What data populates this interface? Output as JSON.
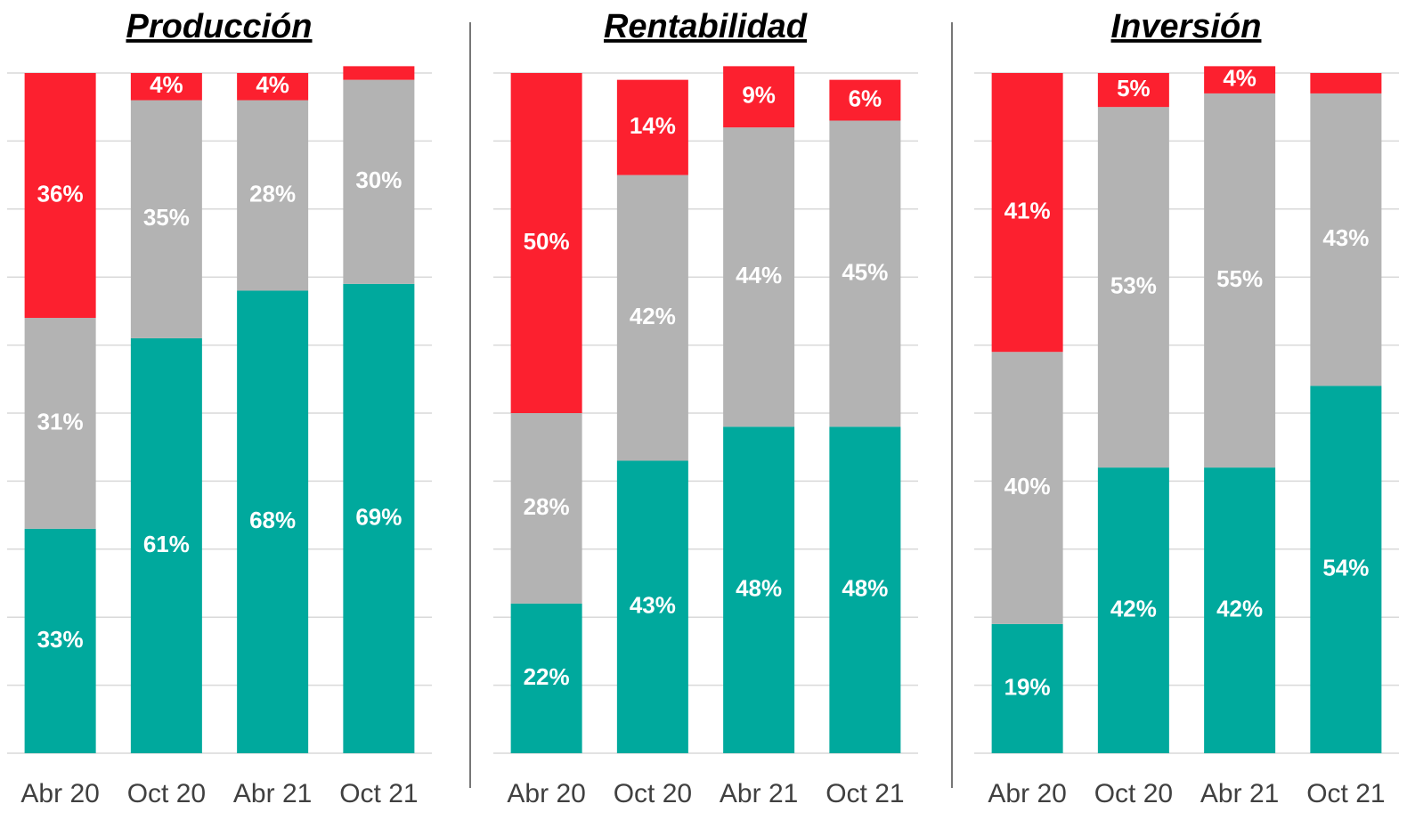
{
  "chart_data": [
    {
      "type": "bar",
      "stacked": true,
      "title": "Producción",
      "categories": [
        "Abr 20",
        "Oct 20",
        "Abr 21",
        "Oct 21"
      ],
      "ylim": [
        0,
        100
      ],
      "yticks": [
        0,
        10,
        20,
        30,
        40,
        50,
        60,
        70,
        80,
        90,
        100
      ],
      "grid": true,
      "series": [
        {
          "color": "#00a99d",
          "values": [
            33,
            61,
            68,
            69
          ],
          "value_labels": [
            "33%",
            "61%",
            "68%",
            "69%"
          ]
        },
        {
          "color": "#b3b3b3",
          "values": [
            31,
            35,
            28,
            30
          ],
          "value_labels": [
            "31%",
            "35%",
            "28%",
            "30%"
          ]
        },
        {
          "color": "#fc202f",
          "values": [
            36,
            4,
            4,
            2
          ],
          "value_labels": [
            "36%",
            "4%",
            "4%",
            null
          ]
        }
      ]
    },
    {
      "type": "bar",
      "stacked": true,
      "title": "Rentabilidad",
      "categories": [
        "Abr 20",
        "Oct 20",
        "Abr 21",
        "Oct 21"
      ],
      "ylim": [
        0,
        100
      ],
      "yticks": [
        0,
        10,
        20,
        30,
        40,
        50,
        60,
        70,
        80,
        90,
        100
      ],
      "grid": true,
      "series": [
        {
          "color": "#00a99d",
          "values": [
            22,
            43,
            48,
            48
          ],
          "value_labels": [
            "22%",
            "43%",
            "48%",
            "48%"
          ]
        },
        {
          "color": "#b3b3b3",
          "values": [
            28,
            42,
            44,
            45
          ],
          "value_labels": [
            "28%",
            "42%",
            "44%",
            "45%"
          ]
        },
        {
          "color": "#fc202f",
          "values": [
            50,
            14,
            9,
            6
          ],
          "value_labels": [
            "50%",
            "14%",
            "9%",
            "6%"
          ]
        }
      ]
    },
    {
      "type": "bar",
      "stacked": true,
      "title": "Inversión",
      "categories": [
        "Abr 20",
        "Oct 20",
        "Abr 21",
        "Oct 21"
      ],
      "ylim": [
        0,
        100
      ],
      "yticks": [
        0,
        10,
        20,
        30,
        40,
        50,
        60,
        70,
        80,
        90,
        100
      ],
      "grid": true,
      "series": [
        {
          "color": "#00a99d",
          "values": [
            19,
            42,
            42,
            54
          ],
          "value_labels": [
            "19%",
            "42%",
            "42%",
            "54%"
          ]
        },
        {
          "color": "#b3b3b3",
          "values": [
            40,
            53,
            55,
            43
          ],
          "value_labels": [
            "40%",
            "53%",
            "55%",
            "43%"
          ]
        },
        {
          "color": "#fc202f",
          "values": [
            41,
            5,
            4,
            3
          ],
          "value_labels": [
            "41%",
            "5%",
            "4%",
            null
          ]
        }
      ]
    }
  ]
}
